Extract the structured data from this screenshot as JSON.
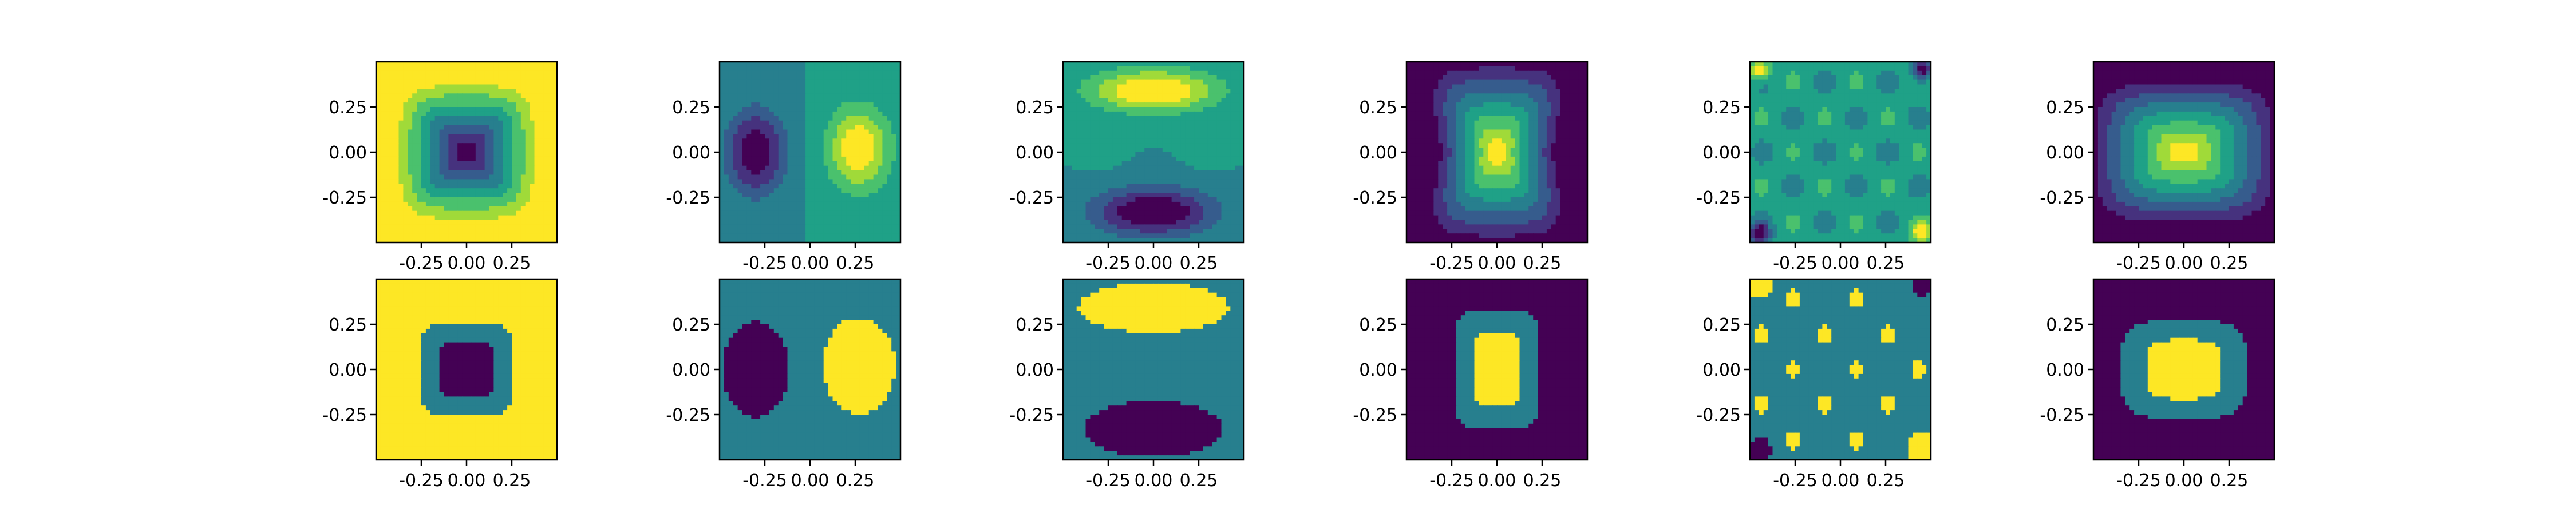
{
  "colors": {
    "viridis": [
      "#440154",
      "#46327e",
      "#365c8d",
      "#277f8e",
      "#1fa187",
      "#4ac16d",
      "#a0da39",
      "#fde725"
    ],
    "frame": "#000000",
    "ticks": "#000000"
  },
  "chart_data": [
    {
      "id": "p00",
      "type": "heatmap",
      "style": "filled-contour",
      "pattern": "centered-minimum",
      "xlim": [
        -0.5,
        0.5
      ],
      "ylim": [
        -0.5,
        0.5
      ],
      "xticks": [
        "-0.25",
        "0.00",
        "0.25"
      ],
      "yticks": [
        "0.25",
        "0.00",
        "-0.25"
      ]
    },
    {
      "id": "p01",
      "type": "heatmap",
      "style": "filled-contour",
      "pattern": "horizontal-dipole",
      "xlim": [
        -0.5,
        0.5
      ],
      "ylim": [
        -0.5,
        0.5
      ],
      "xticks": [
        "-0.25",
        "0.00",
        "0.25"
      ],
      "yticks": [
        "0.25",
        "0.00",
        "-0.25"
      ]
    },
    {
      "id": "p02",
      "type": "heatmap",
      "style": "filled-contour",
      "pattern": "vertical-dipole",
      "xlim": [
        -0.5,
        0.5
      ],
      "ylim": [
        -0.5,
        0.5
      ],
      "xticks": [
        "-0.25",
        "0.00",
        "0.25"
      ],
      "yticks": [
        "0.25",
        "0.00",
        "-0.25"
      ]
    },
    {
      "id": "p03",
      "type": "heatmap",
      "style": "filled-contour",
      "pattern": "centered-maximum-pinched",
      "xlim": [
        -0.5,
        0.5
      ],
      "ylim": [
        -0.5,
        0.5
      ],
      "xticks": [
        "-0.25",
        "0.00",
        "0.25"
      ],
      "yticks": [
        "0.25",
        "0.00",
        "-0.25"
      ]
    },
    {
      "id": "p04",
      "type": "heatmap",
      "style": "filled-contour",
      "pattern": "corner-quadrupole",
      "xlim": [
        -0.5,
        0.5
      ],
      "ylim": [
        -0.5,
        0.5
      ],
      "xticks": [
        "-0.25",
        "0.00",
        "0.25"
      ],
      "yticks": [
        "0.25",
        "0.00",
        "-0.25"
      ]
    },
    {
      "id": "p05",
      "type": "heatmap",
      "style": "filled-contour",
      "pattern": "centered-maximum-wide",
      "xlim": [
        -0.5,
        0.5
      ],
      "ylim": [
        -0.5,
        0.5
      ],
      "xticks": [
        "-0.25",
        "0.00",
        "0.25"
      ],
      "yticks": [
        "0.25",
        "0.00",
        "-0.25"
      ]
    },
    {
      "id": "p10",
      "type": "heatmap",
      "style": "quantized",
      "pattern": "centered-minimum",
      "xlim": [
        -0.5,
        0.5
      ],
      "ylim": [
        -0.5,
        0.5
      ],
      "xticks": [
        "-0.25",
        "0.00",
        "0.25"
      ],
      "yticks": [
        "0.25",
        "0.00",
        "-0.25"
      ]
    },
    {
      "id": "p11",
      "type": "heatmap",
      "style": "quantized",
      "pattern": "horizontal-dipole",
      "xlim": [
        -0.5,
        0.5
      ],
      "ylim": [
        -0.5,
        0.5
      ],
      "xticks": [
        "-0.25",
        "0.00",
        "0.25"
      ],
      "yticks": [
        "0.25",
        "0.00",
        "-0.25"
      ]
    },
    {
      "id": "p12",
      "type": "heatmap",
      "style": "quantized",
      "pattern": "vertical-dipole",
      "xlim": [
        -0.5,
        0.5
      ],
      "ylim": [
        -0.5,
        0.5
      ],
      "xticks": [
        "-0.25",
        "0.00",
        "0.25"
      ],
      "yticks": [
        "0.25",
        "0.00",
        "-0.25"
      ]
    },
    {
      "id": "p13",
      "type": "heatmap",
      "style": "quantized",
      "pattern": "centered-maximum-pinched",
      "xlim": [
        -0.5,
        0.5
      ],
      "ylim": [
        -0.5,
        0.5
      ],
      "xticks": [
        "-0.25",
        "0.00",
        "0.25"
      ],
      "yticks": [
        "0.25",
        "0.00",
        "-0.25"
      ]
    },
    {
      "id": "p14",
      "type": "heatmap",
      "style": "quantized",
      "pattern": "corner-quadrupole",
      "xlim": [
        -0.5,
        0.5
      ],
      "ylim": [
        -0.5,
        0.5
      ],
      "xticks": [
        "-0.25",
        "0.00",
        "0.25"
      ],
      "yticks": [
        "0.25",
        "0.00",
        "-0.25"
      ]
    },
    {
      "id": "p15",
      "type": "heatmap",
      "style": "quantized",
      "pattern": "centered-maximum-wide",
      "xlim": [
        -0.5,
        0.5
      ],
      "ylim": [
        -0.5,
        0.5
      ],
      "xticks": [
        "-0.25",
        "0.00",
        "0.25"
      ],
      "yticks": [
        "0.25",
        "0.00",
        "-0.25"
      ]
    }
  ]
}
